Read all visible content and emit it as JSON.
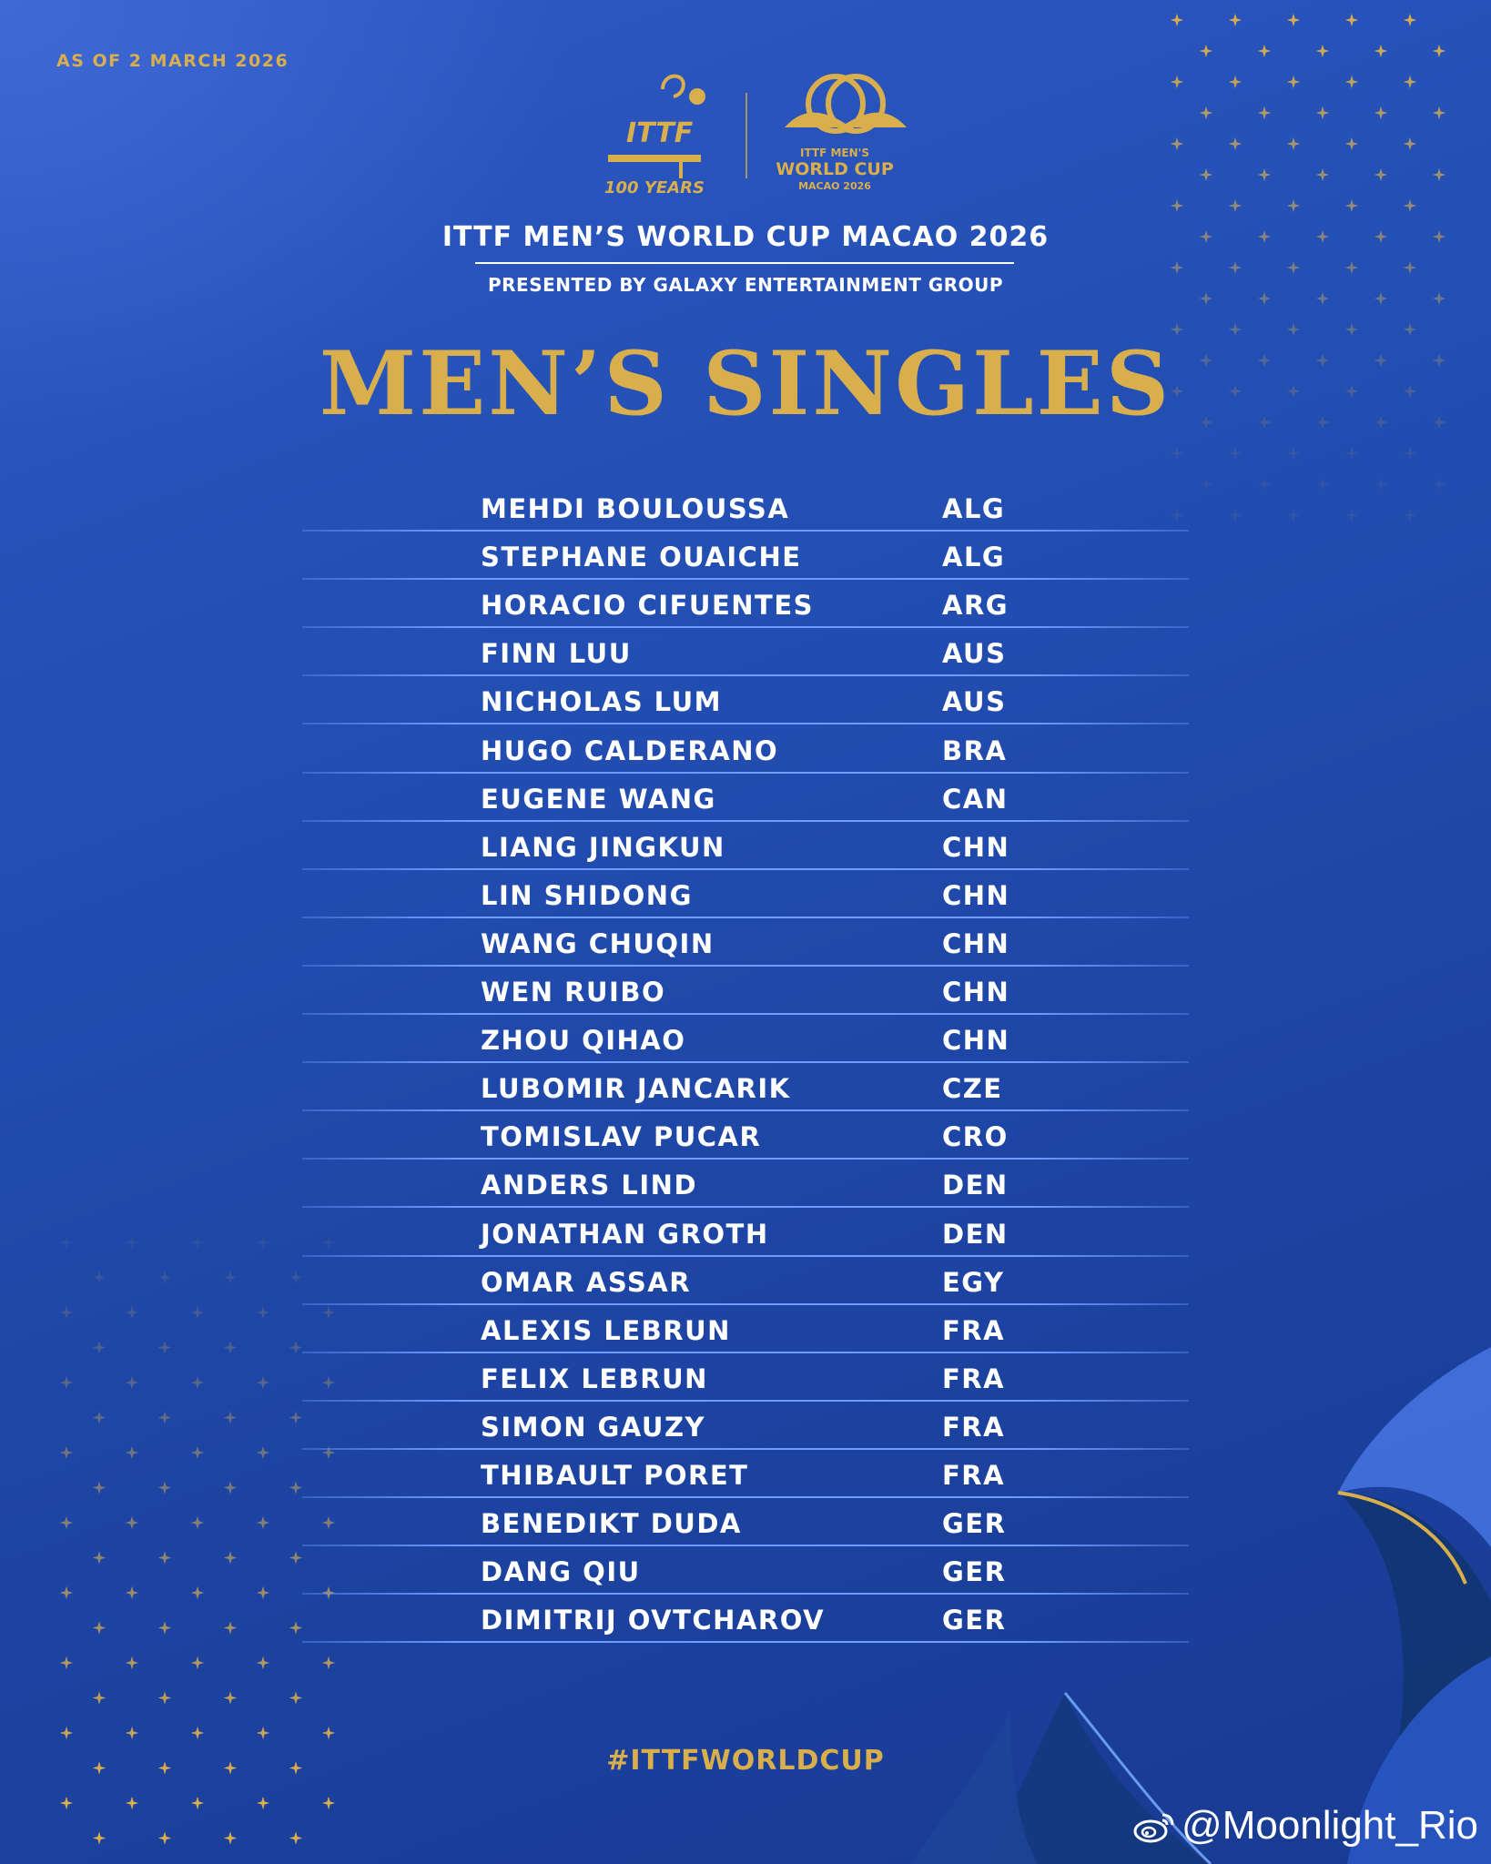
{
  "poster": {
    "as_of": "AS OF 2 MARCH 2026",
    "logos": {
      "ittf_mark": "ITTF",
      "ittf_years": "100 YEARS",
      "event_line1": "ITTF MEN'S",
      "event_line2": "WORLD CUP",
      "event_line3": "MACAO 2026"
    },
    "event_title": "ITTF MEN’S WORLD CUP MACAO 2026",
    "presented_by": "PRESENTED BY GALAXY ENTERTAINMENT GROUP",
    "heading": "MEN’S SINGLES",
    "players": [
      {
        "name": "MEHDI BOULOUSSA",
        "country": "ALG"
      },
      {
        "name": "STEPHANE OUAICHE",
        "country": "ALG"
      },
      {
        "name": "HORACIO CIFUENTES",
        "country": "ARG"
      },
      {
        "name": "FINN LUU",
        "country": "AUS"
      },
      {
        "name": "NICHOLAS LUM",
        "country": "AUS"
      },
      {
        "name": "HUGO CALDERANO",
        "country": "BRA"
      },
      {
        "name": "EUGENE WANG",
        "country": "CAN"
      },
      {
        "name": "LIANG JINGKUN",
        "country": "CHN"
      },
      {
        "name": "LIN SHIDONG",
        "country": "CHN"
      },
      {
        "name": "WANG CHUQIN",
        "country": "CHN"
      },
      {
        "name": "WEN RUIBO",
        "country": "CHN"
      },
      {
        "name": "ZHOU QIHAO",
        "country": "CHN"
      },
      {
        "name": "LUBOMIR JANCARIK",
        "country": "CZE"
      },
      {
        "name": "TOMISLAV PUCAR",
        "country": "CRO"
      },
      {
        "name": "ANDERS LIND",
        "country": "DEN"
      },
      {
        "name": "JONATHAN GROTH",
        "country": "DEN"
      },
      {
        "name": "OMAR ASSAR",
        "country": "EGY"
      },
      {
        "name": "ALEXIS LEBRUN",
        "country": "FRA"
      },
      {
        "name": "FELIX LEBRUN",
        "country": "FRA"
      },
      {
        "name": "SIMON GAUZY",
        "country": "FRA"
      },
      {
        "name": "THIBAULT PORET",
        "country": "FRA"
      },
      {
        "name": "BENEDIKT DUDA",
        "country": "GER"
      },
      {
        "name": "DANG QIU",
        "country": "GER"
      },
      {
        "name": "DIMITRIJ OVTCHAROV",
        "country": "GER"
      }
    ],
    "hashtag": "#ITTFWORLDCUP"
  },
  "watermark": {
    "icon": "weibo-icon",
    "text": "@Moonlight_Rio"
  },
  "colors": {
    "gold": "#d9ae4c",
    "background": "#2450b5",
    "row_rule": "#6e9dff",
    "text": "#ffffff"
  }
}
